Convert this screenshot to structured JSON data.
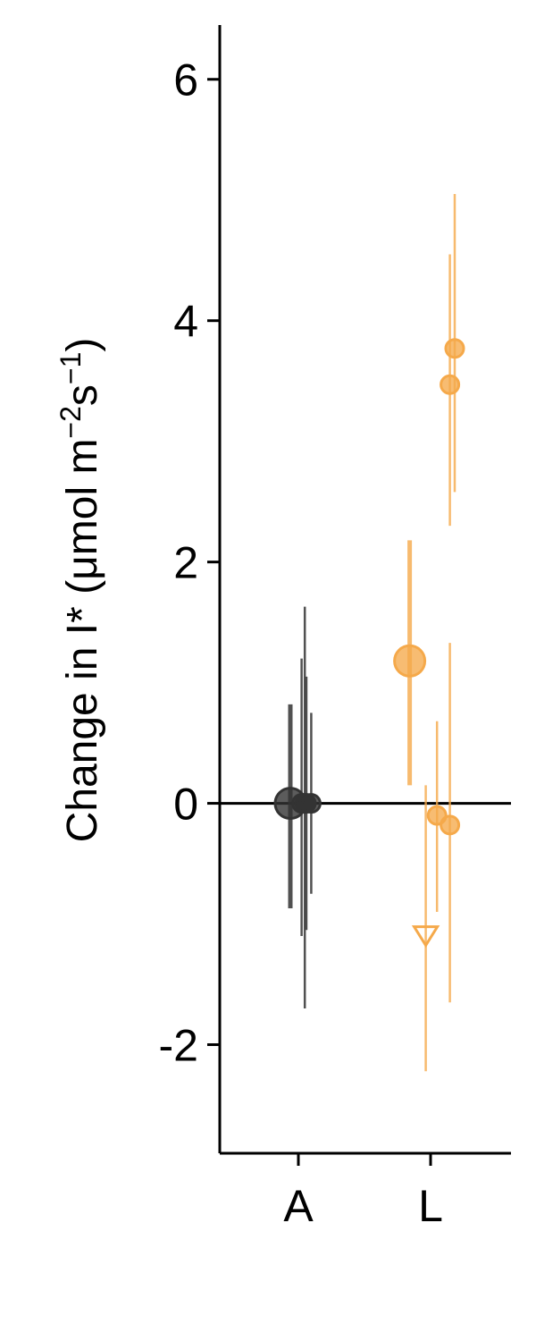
{
  "chart_data": {
    "type": "scatter",
    "title": "",
    "xlabel": "",
    "ylabel": {
      "main": "Change in I* (μmol m",
      "sup1": "−2",
      "mid": "s",
      "sup2": "−1",
      "end": ")"
    },
    "ylim": [
      -2.9,
      6.45
    ],
    "y_ticks": [
      -2,
      0,
      2,
      4,
      6
    ],
    "y_tick_labels": [
      "-2",
      "0",
      "2",
      "4",
      "6"
    ],
    "categories": [
      "A",
      "L"
    ],
    "zero_line": true,
    "grid": false,
    "legend": "none",
    "series": [
      {
        "category": "A",
        "color": "#333333",
        "points": [
          {
            "x_offset": -0.05,
            "y": 0.0,
            "y_low": -0.87,
            "y_high": 0.82,
            "marker": "circle",
            "size": "large"
          },
          {
            "x_offset": 0.02,
            "y": 0.0,
            "y_low": -1.1,
            "y_high": 1.2,
            "marker": "circle",
            "size": "small"
          },
          {
            "x_offset": 0.04,
            "y": 0.0,
            "y_low": -1.7,
            "y_high": 1.63,
            "marker": "circle",
            "size": "small"
          },
          {
            "x_offset": 0.05,
            "y": 0.0,
            "y_low": -1.05,
            "y_high": 1.05,
            "marker": "circle",
            "size": "small"
          },
          {
            "x_offset": 0.08,
            "y": 0.0,
            "y_low": -0.75,
            "y_high": 0.75,
            "marker": "circle",
            "size": "small"
          }
        ]
      },
      {
        "category": "L",
        "color": "#f5a94a",
        "points": [
          {
            "x_offset": -0.13,
            "y": 1.18,
            "y_low": 0.15,
            "y_high": 2.18,
            "marker": "circle",
            "size": "large"
          },
          {
            "x_offset": -0.03,
            "y": -1.1,
            "y_low": -2.22,
            "y_high": 0.15,
            "marker": "triangle-down-open",
            "size": "medium"
          },
          {
            "x_offset": 0.04,
            "y": -0.1,
            "y_low": -0.9,
            "y_high": 0.68,
            "marker": "circle",
            "size": "small"
          },
          {
            "x_offset": 0.12,
            "y": -0.18,
            "y_low": -1.65,
            "y_high": 1.33,
            "marker": "circle",
            "size": "small"
          },
          {
            "x_offset": 0.12,
            "y": 3.47,
            "y_low": 2.3,
            "y_high": 4.55,
            "marker": "circle",
            "size": "small"
          },
          {
            "x_offset": 0.15,
            "y": 3.77,
            "y_low": 2.58,
            "y_high": 5.05,
            "marker": "circle",
            "size": "small"
          }
        ]
      }
    ]
  }
}
